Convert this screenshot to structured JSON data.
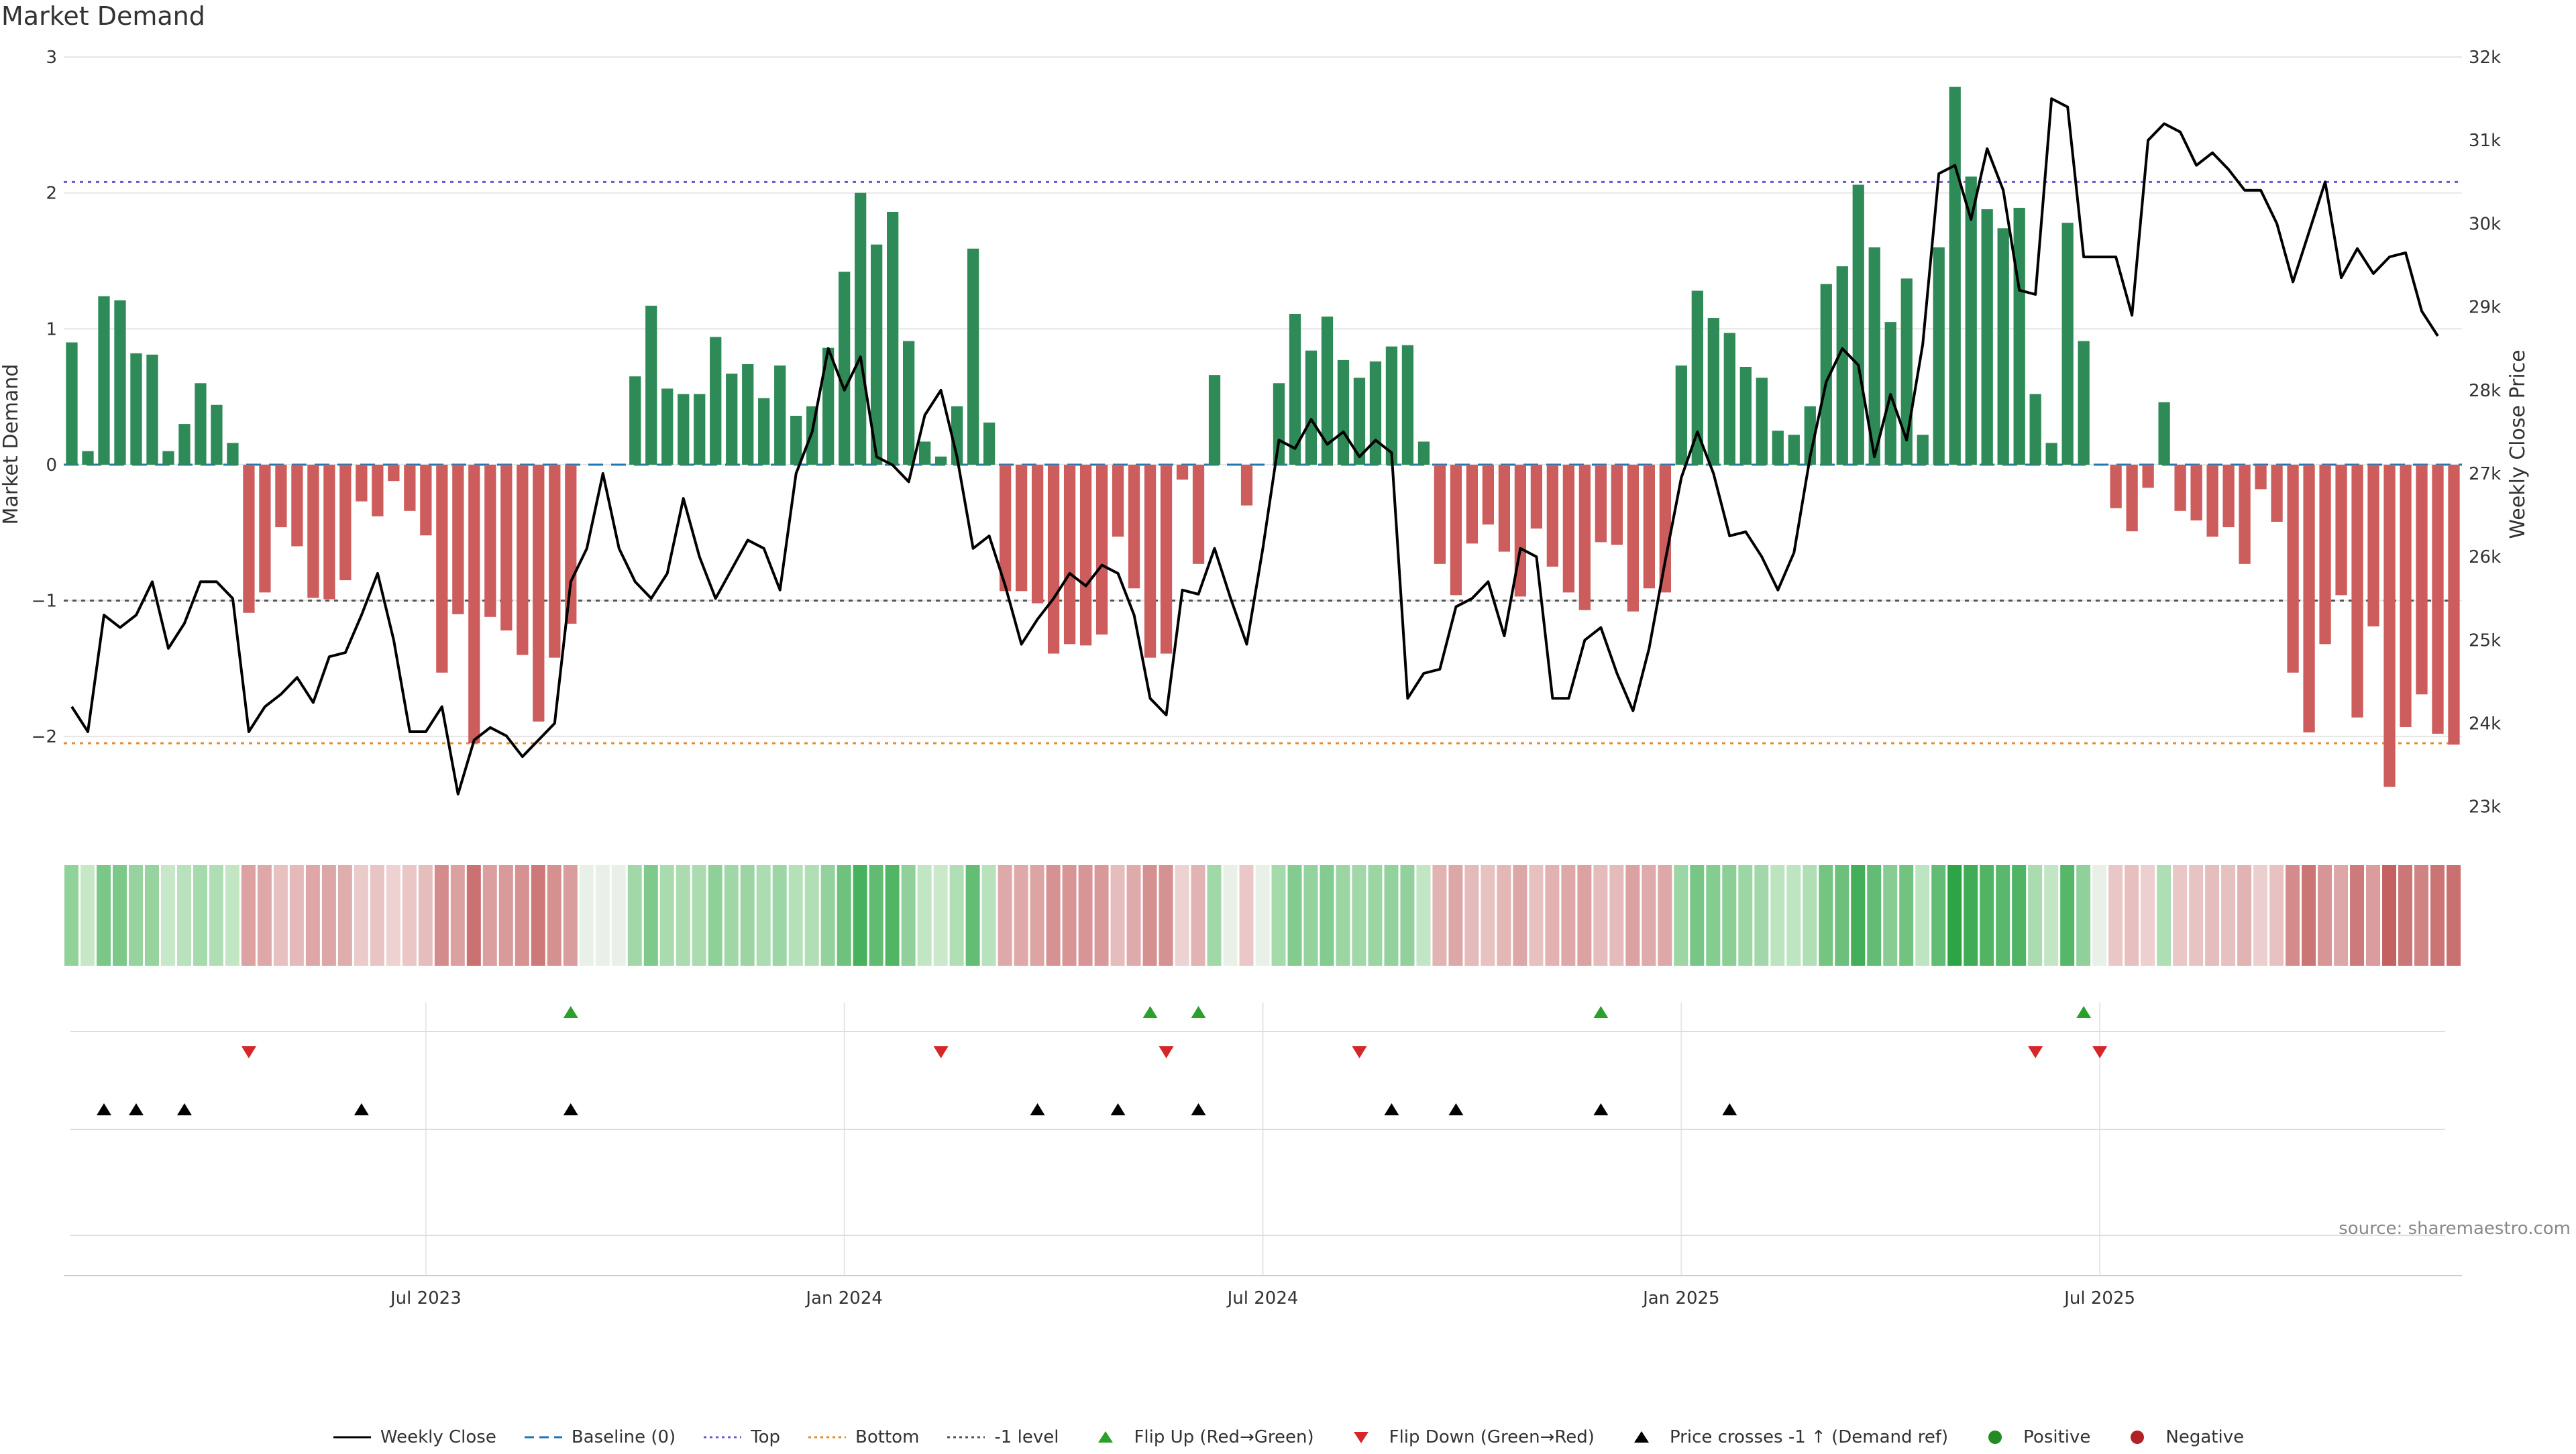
{
  "title": "Market Demand",
  "source": "source: sharemaestro.com",
  "colors": {
    "positive": "#2e8b57",
    "negative": "#cd5c5c",
    "price_line": "#000000",
    "baseline": "#1f77b4",
    "top": "#6a5acd",
    "bottom": "#e08a2c",
    "minus_one": "#555555",
    "flip_up": "#2ca02c",
    "flip_down": "#d62728",
    "cross": "#000000",
    "grid": "#e6e6e6"
  },
  "legend": [
    {
      "label": "Weekly Close",
      "kind": "line",
      "color": "#000000",
      "icon": "solid-line-icon"
    },
    {
      "label": "Baseline (0)",
      "kind": "dash",
      "color": "#1f77b4",
      "icon": "dashed-line-icon"
    },
    {
      "label": "Top",
      "kind": "dot",
      "color": "#6a5acd",
      "icon": "dotted-line-icon"
    },
    {
      "label": "Bottom",
      "kind": "dot",
      "color": "#e08a2c",
      "icon": "dotted-line-icon"
    },
    {
      "label": "-1 level",
      "kind": "dot",
      "color": "#555555",
      "icon": "dotted-line-icon"
    },
    {
      "label": "Flip Up (Red→Green)",
      "kind": "tri-up",
      "color": "#2ca02c",
      "icon": "triangle-up-icon"
    },
    {
      "label": "Flip Down (Green→Red)",
      "kind": "tri-down",
      "color": "#d62728",
      "icon": "triangle-down-icon"
    },
    {
      "label": "Price crosses -1 ↑ (Demand ref)",
      "kind": "tri-up",
      "color": "#000000",
      "icon": "triangle-up-icon"
    },
    {
      "label": "Positive",
      "kind": "circle",
      "color": "#228b22",
      "icon": "circle-icon"
    },
    {
      "label": "Negative",
      "kind": "circle",
      "color": "#b22222",
      "icon": "circle-icon"
    }
  ],
  "chart_data": {
    "type": "bar",
    "title": "Market Demand",
    "ylabel": "Market Demand",
    "y2label": "Weekly Close Price",
    "ylim": [
      -2.7,
      3.0
    ],
    "y2lim": [
      22700,
      32000
    ],
    "yticks": [
      {
        "value": 3,
        "label": "3"
      },
      {
        "value": 2,
        "label": "2"
      },
      {
        "value": 1,
        "label": "1"
      },
      {
        "value": 0,
        "label": "0"
      },
      {
        "value": -1,
        "label": "−1"
      },
      {
        "value": -2,
        "label": "−2"
      }
    ],
    "y2ticks": [
      {
        "value": 32000,
        "label": "32k"
      },
      {
        "value": 31000,
        "label": "31k"
      },
      {
        "value": 30000,
        "label": "30k"
      },
      {
        "value": 29000,
        "label": "29k"
      },
      {
        "value": 28000,
        "label": "28k"
      },
      {
        "value": 27000,
        "label": "27k"
      },
      {
        "value": 26000,
        "label": "26k"
      },
      {
        "value": 25000,
        "label": "25k"
      },
      {
        "value": 24000,
        "label": "24k"
      },
      {
        "value": 23000,
        "label": "23k"
      }
    ],
    "xticks": [
      {
        "index": 22,
        "label": "Jul 2023"
      },
      {
        "index": 48,
        "label": "Jan 2024"
      },
      {
        "index": 74,
        "label": "Jul 2024"
      },
      {
        "index": 100,
        "label": "Jan 2025"
      },
      {
        "index": 126,
        "label": "Jul 2025"
      }
    ],
    "reference_lines": [
      {
        "name": "Baseline (0)",
        "value": 0
      },
      {
        "name": "Top",
        "value": 2.08
      },
      {
        "name": "Bottom",
        "value": -2.05
      },
      {
        "name": "-1 level",
        "value": -1
      }
    ],
    "series": [
      {
        "name": "Market Demand",
        "values": [
          0.9,
          0.1,
          1.24,
          1.21,
          0.82,
          0.81,
          0.1,
          0.3,
          0.6,
          0.44,
          0.16,
          -1.09,
          -0.94,
          -0.46,
          -0.6,
          -0.98,
          -0.99,
          -0.85,
          -0.27,
          -0.38,
          -0.12,
          -0.34,
          -0.52,
          -1.53,
          -1.1,
          -2.05,
          -1.12,
          -1.22,
          -1.4,
          -1.89,
          -1.42,
          -1.17,
          0,
          0,
          0,
          0.65,
          1.17,
          0.56,
          0.52,
          0.52,
          0.94,
          0.67,
          0.74,
          0.49,
          0.73,
          0.36,
          0.43,
          0.86,
          1.42,
          2.0,
          1.62,
          1.86,
          0.91,
          0.17,
          0.06,
          0.43,
          1.59,
          0.31,
          -0.93,
          -0.93,
          -1.02,
          -1.39,
          -1.32,
          -1.33,
          -1.25,
          -0.53,
          -0.91,
          -1.42,
          -1.39,
          -0.11,
          -0.73,
          0.66,
          0,
          -0.3,
          0,
          0.6,
          1.11,
          0.84,
          1.09,
          0.77,
          0.64,
          0.76,
          0.87,
          0.88,
          0.17,
          -0.73,
          -0.96,
          -0.58,
          -0.44,
          -0.64,
          -0.97,
          -0.47,
          -0.75,
          -0.94,
          -1.07,
          -0.57,
          -0.59,
          -1.08,
          -0.91,
          -0.94,
          0.73,
          1.28,
          1.08,
          0.97,
          0.72,
          0.64,
          0.25,
          0.22,
          0.43,
          1.33,
          1.46,
          2.06,
          1.6,
          1.05,
          1.37,
          0.22,
          1.6,
          2.78,
          2.12,
          1.88,
          1.74,
          1.89,
          0.52,
          0.16,
          1.78,
          0.91,
          0,
          -0.32,
          -0.49,
          -0.17,
          0.46,
          -0.34,
          -0.41,
          -0.53,
          -0.46,
          -0.73,
          -0.18,
          -0.42,
          -1.53,
          -1.97,
          -1.32,
          -0.96,
          -1.86,
          -1.19,
          -2.37,
          -1.93,
          -1.69,
          -1.98,
          -2.06
        ]
      },
      {
        "name": "Weekly Close",
        "values": [
          24200,
          23900,
          25300,
          25150,
          25300,
          25700,
          24900,
          25200,
          25700,
          25700,
          25500,
          23900,
          24200,
          24350,
          24550,
          24250,
          24800,
          24850,
          25300,
          25800,
          25000,
          23900,
          23900,
          24200,
          23150,
          23800,
          23950,
          23850,
          23600,
          23800,
          24000,
          25700,
          26100,
          27000,
          26100,
          25700,
          25500,
          25800,
          26700,
          26000,
          25500,
          25850,
          26200,
          26100,
          25600,
          27000,
          27500,
          28500,
          28000,
          28400,
          27200,
          27100,
          26900,
          27700,
          28000,
          27200,
          26100,
          26250,
          25650,
          24950,
          25250,
          25500,
          25800,
          25650,
          25900,
          25800,
          25300,
          24300,
          24100,
          25600,
          25550,
          26100,
          25500,
          24950,
          26100,
          27400,
          27300,
          27650,
          27350,
          27500,
          27200,
          27400,
          27250,
          24300,
          24600,
          24650,
          25400,
          25500,
          25700,
          25050,
          26100,
          26000,
          24300,
          24300,
          25000,
          25150,
          24600,
          24150,
          24900,
          25950,
          26950,
          27500,
          27000,
          26250,
          26300,
          26000,
          25600,
          26050,
          27200,
          28100,
          28500,
          28300,
          27200,
          27950,
          27400,
          28550,
          30600,
          30700,
          30050,
          30900,
          30400,
          29200,
          29150,
          31500,
          31400,
          29600,
          29600,
          29600,
          28900,
          31000,
          31200,
          31100,
          30700,
          30850,
          30650,
          30400,
          30400,
          30000,
          29300,
          29900,
          30500,
          29350,
          29700,
          29400,
          29600,
          29650,
          28950,
          28650
        ]
      }
    ],
    "color_strip_style": "per-week tile tinted by demand sign and strength",
    "flip_up_indices": [
      31,
      67,
      70,
      95,
      125
    ],
    "flip_down_indices": [
      11,
      54,
      68,
      80,
      122,
      126
    ],
    "cross_up_indices": [
      2,
      4,
      7,
      18,
      31,
      60,
      65,
      70,
      82,
      86,
      95,
      103
    ]
  }
}
